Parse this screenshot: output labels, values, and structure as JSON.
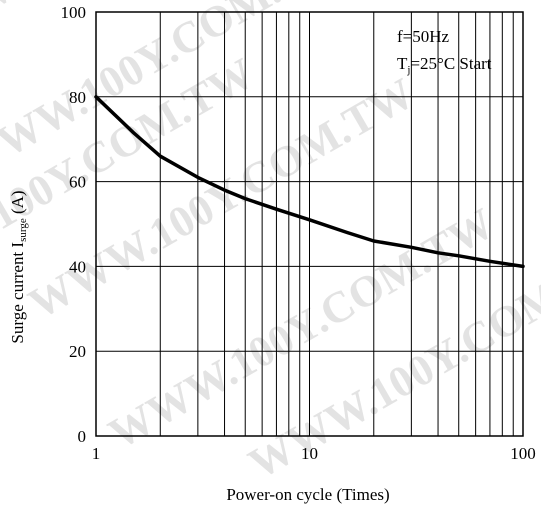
{
  "chart_data": {
    "type": "line",
    "xlabel": "Power-on cycle (Times)",
    "ylabel": {
      "prefix": "Surge current I",
      "subscript": "surge",
      "suffix": " (A)"
    },
    "x_scale": "log",
    "xlim": [
      1,
      100
    ],
    "ylim": [
      0,
      100
    ],
    "x_ticks": [
      "1",
      "10",
      "100"
    ],
    "y_ticks": [
      "0",
      "20",
      "40",
      "60",
      "80",
      "100"
    ],
    "grid": true,
    "annotations": [
      {
        "text": "f=50Hz"
      },
      {
        "prefix": "T",
        "subscript": "j",
        "suffix": "=25°C Start"
      }
    ],
    "series": [
      {
        "x": [
          1,
          1.5,
          2,
          3,
          4,
          5,
          7,
          10,
          15,
          20,
          30,
          40,
          50,
          70,
          100
        ],
        "y": [
          80,
          71.5,
          66,
          61,
          58,
          56,
          53.5,
          51,
          48,
          46,
          44.5,
          43.2,
          42.5,
          41.2,
          40
        ],
        "color": "#000000"
      }
    ],
    "watermark": "WWW.100Y.COM.TW"
  }
}
